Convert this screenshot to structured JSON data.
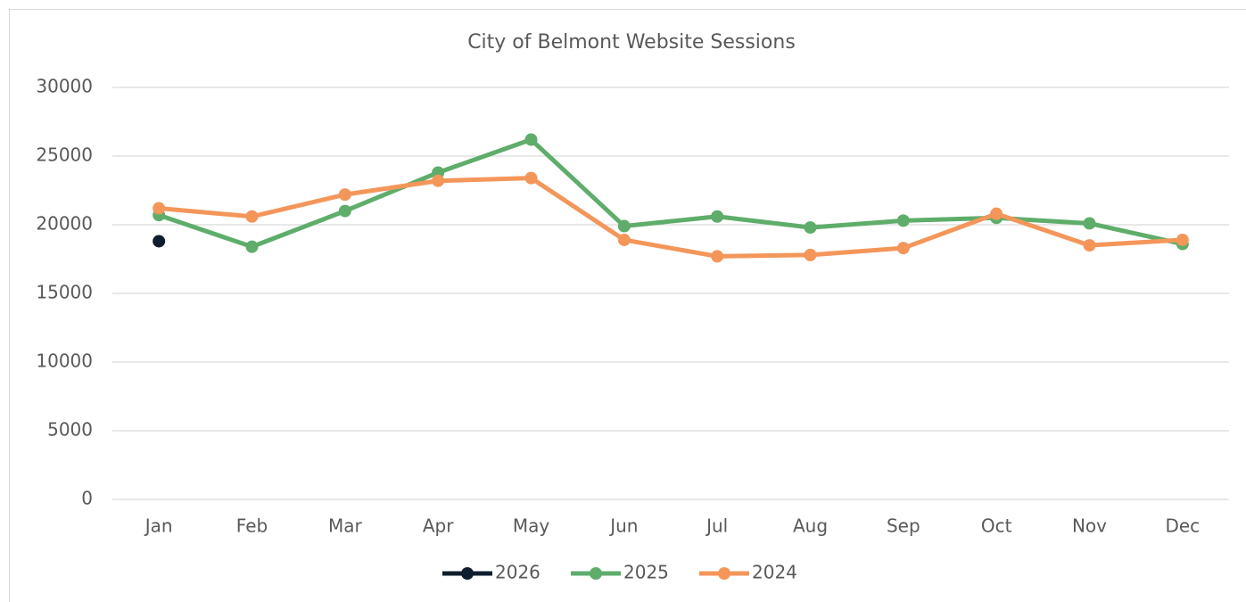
{
  "chart_data": {
    "type": "line",
    "title": "City of Belmont Website Sessions",
    "categories": [
      "Jan",
      "Feb",
      "Mar",
      "Apr",
      "May",
      "Jun",
      "Jul",
      "Aug",
      "Sep",
      "Oct",
      "Nov",
      "Dec"
    ],
    "series": [
      {
        "name": "2026",
        "color": "#0e1e2e",
        "values": [
          18800,
          null,
          null,
          null,
          null,
          null,
          null,
          null,
          null,
          null,
          null,
          null
        ]
      },
      {
        "name": "2025",
        "color": "#5fad6b",
        "values": [
          20700,
          18400,
          21000,
          23800,
          26200,
          19900,
          20600,
          19800,
          20300,
          20500,
          20100,
          18600
        ]
      },
      {
        "name": "2024",
        "color": "#f4965a",
        "values": [
          21200,
          20600,
          22200,
          23200,
          23400,
          18900,
          17700,
          17800,
          18300,
          20800,
          18500,
          18900
        ]
      }
    ],
    "ylim": [
      0,
      30000
    ],
    "yticks": [
      0,
      5000,
      10000,
      15000,
      20000,
      25000,
      30000
    ],
    "grid": true,
    "legend": "bottom"
  }
}
